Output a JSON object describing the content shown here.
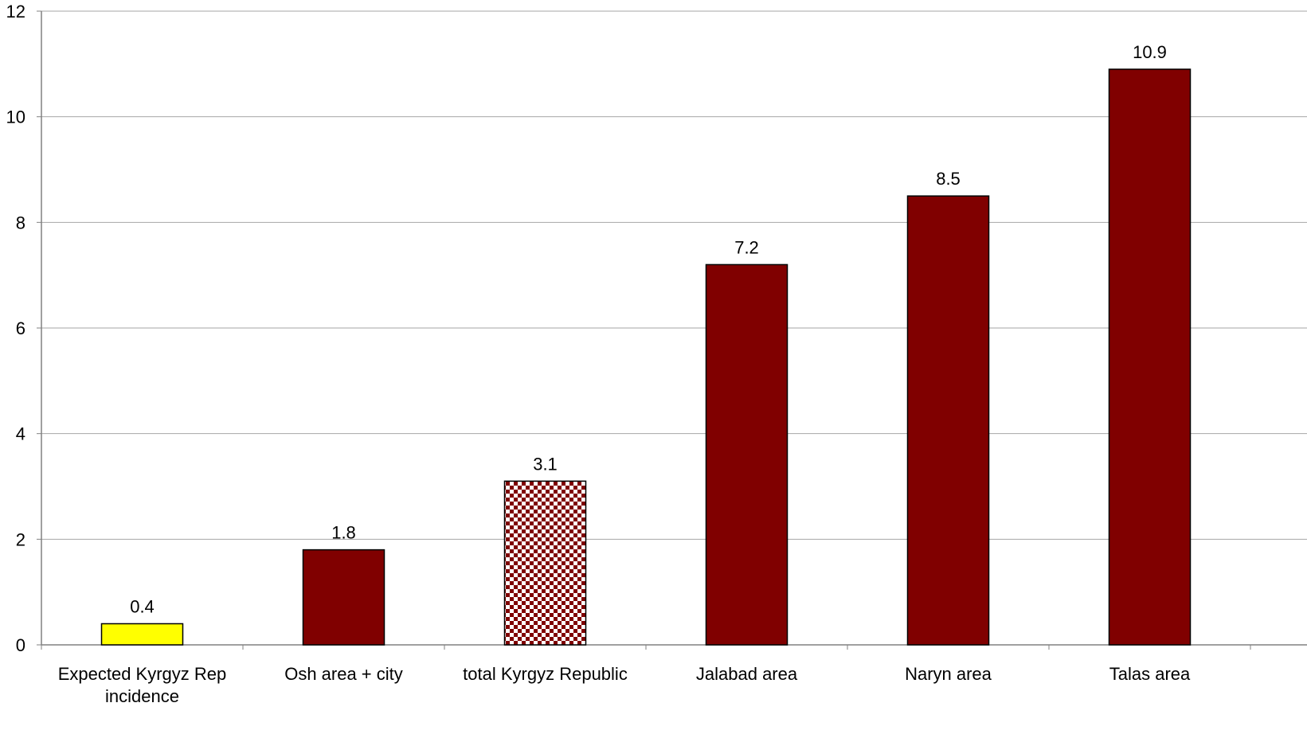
{
  "chart_data": {
    "type": "bar",
    "categories": [
      [
        "Expected Kyrgyz Rep",
        "incidence"
      ],
      [
        "Osh area + city"
      ],
      [
        "total Kyrgyz Republic"
      ],
      [
        "Jalabad area"
      ],
      [
        "Naryn area"
      ],
      [
        "Talas area"
      ]
    ],
    "values": [
      0.4,
      1.8,
      3.1,
      7.2,
      8.5,
      10.9
    ],
    "data_labels": [
      "0.4",
      "1.8",
      "3.1",
      "7.2",
      "8.5",
      "10.9"
    ],
    "bar_fills": [
      "solid-yellow",
      "solid-maroon",
      "checker-maroon",
      "solid-maroon",
      "solid-maroon",
      "solid-maroon"
    ],
    "colors": {
      "maroon": "#800000",
      "yellow": "#ffff00",
      "grid": "#a6a6a6",
      "axis": "#808080"
    },
    "yticks": [
      "0",
      "2",
      "4",
      "6",
      "8",
      "10",
      "12"
    ],
    "ylim": [
      0,
      12
    ],
    "grid": true,
    "legend": "none"
  }
}
